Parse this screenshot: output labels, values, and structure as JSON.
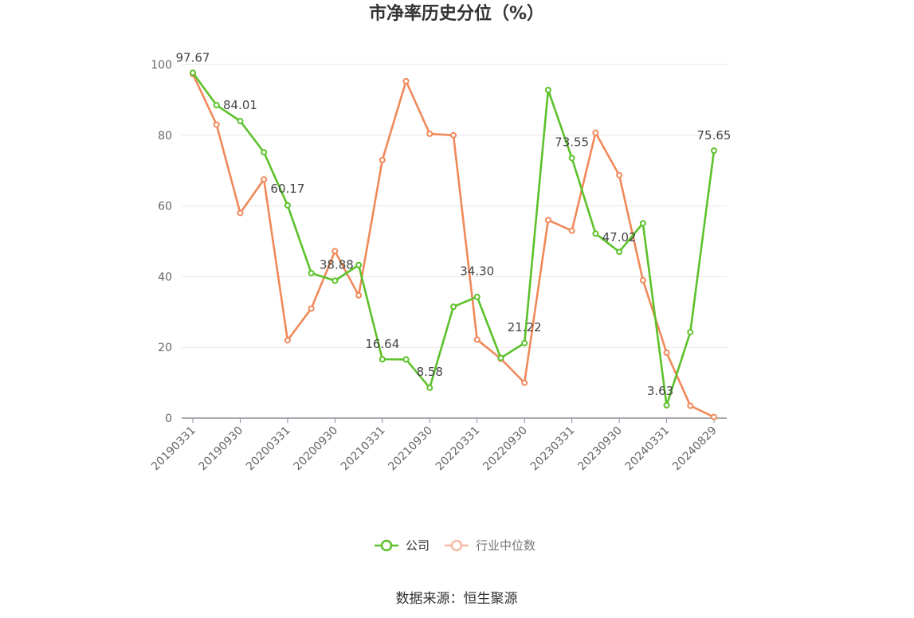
{
  "chart_data": {
    "type": "line",
    "title": "市净率历史分位（%）",
    "ylim": [
      0,
      100
    ],
    "yticks": [
      "0",
      "20",
      "40",
      "60",
      "80",
      "100"
    ],
    "x": [
      "20190331",
      "20190630",
      "20190930",
      "20191231",
      "20200331",
      "20200630",
      "20200930",
      "20201231",
      "20210331",
      "20210630",
      "20210930",
      "20211231",
      "20220331",
      "20220630",
      "20220930",
      "20221231",
      "20230331",
      "20230630",
      "20230930",
      "20231231",
      "20240331",
      "20240630",
      "20240829"
    ],
    "xtick_labels": [
      "20190331",
      "20190930",
      "20200331",
      "20200930",
      "20210331",
      "20210930",
      "20220331",
      "20220930",
      "20230331",
      "20230930",
      "20240331",
      "20240829"
    ],
    "grid": true,
    "legend_position": "bottom",
    "series": [
      {
        "name": "公司",
        "color": "#5cc12a",
        "values": [
          97.67,
          88.5,
          84.01,
          75.2,
          60.17,
          41.0,
          38.88,
          43.3,
          16.64,
          16.6,
          8.58,
          31.5,
          34.3,
          17.0,
          21.22,
          92.8,
          73.55,
          52.2,
          47.02,
          55.1,
          3.63,
          24.3,
          75.65
        ],
        "labels": {
          "0": "97.67",
          "2": "84.01",
          "4": "60.17",
          "6": "38.88",
          "8": "16.64",
          "10": "8.58",
          "12": "34.30",
          "14": "21.22",
          "16": "73.55",
          "18": "47.02",
          "20": "3.63",
          "22": "75.65"
        }
      },
      {
        "name": "行业中位数",
        "color": "#f0895a",
        "values": [
          97.3,
          83.0,
          58.0,
          67.5,
          22.0,
          31.0,
          47.2,
          34.7,
          73.0,
          95.3,
          80.4,
          80.0,
          22.2,
          16.8,
          10.0,
          56.0,
          53.0,
          80.7,
          68.7,
          39.0,
          18.5,
          3.5,
          0.3
        ]
      }
    ],
    "source": "数据来源：恒生聚源"
  }
}
